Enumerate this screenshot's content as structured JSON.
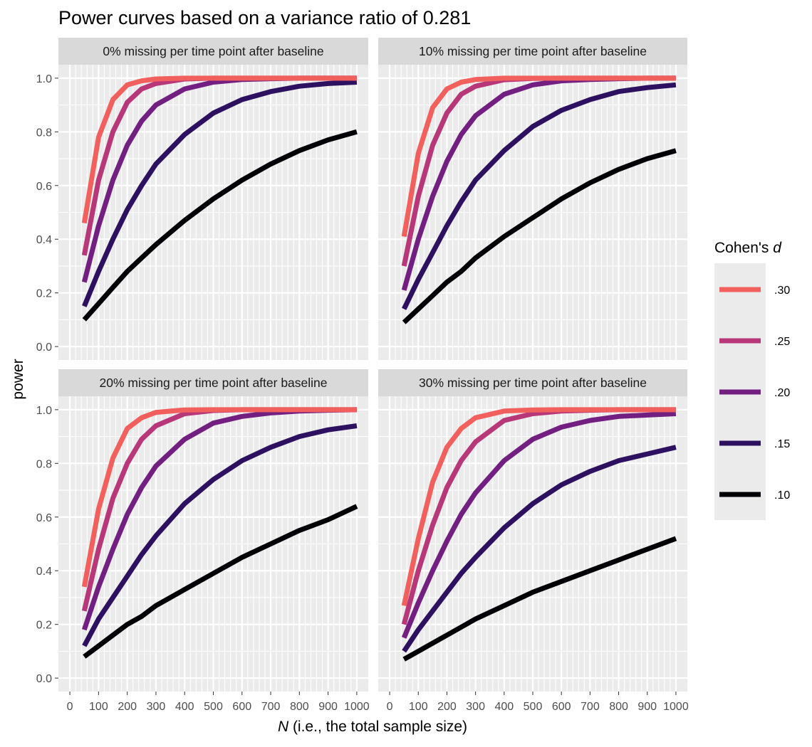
{
  "chart_data": {
    "type": "line",
    "title": "Power curves based on a variance ratio of 0.281",
    "xlabel_italic": "N",
    "xlabel_rest": " (i.e., the total sample size)",
    "ylabel": "power",
    "x_ticks": [
      0,
      100,
      200,
      300,
      400,
      500,
      600,
      700,
      800,
      900,
      1000
    ],
    "y_ticks": [
      0.0,
      0.2,
      0.4,
      0.6,
      0.8,
      1.0
    ],
    "y_tick_labels": [
      "0.0",
      "0.2",
      "0.4",
      "0.6",
      "0.8",
      "1.0"
    ],
    "xlim": [
      -40,
      1040
    ],
    "ylim": [
      -0.05,
      1.05
    ],
    "x_minor_step": 20,
    "grid": true,
    "legend": {
      "title_prefix": "Cohen's ",
      "title_italic": "d",
      "placement": "right",
      "entries": [
        {
          "label": ".30",
          "color": "#F1605D"
        },
        {
          "label": ".25",
          "color": "#B73779"
        },
        {
          "label": ".20",
          "color": "#721F81"
        },
        {
          "label": ".15",
          "color": "#2D1160"
        },
        {
          "label": ".10",
          "color": "#000004"
        }
      ]
    },
    "panels": [
      {
        "label": "0% missing per time point after baseline",
        "x": [
          50,
          100,
          150,
          200,
          250,
          300,
          400,
          500,
          600,
          700,
          800,
          900,
          1000
        ],
        "series": [
          {
            "name": ".30",
            "color": "#F1605D",
            "values": [
              0.46,
              0.78,
              0.92,
              0.975,
              0.99,
              0.997,
              1.0,
              1.0,
              1.0,
              1.0,
              1.0,
              1.0,
              1.0
            ]
          },
          {
            "name": ".25",
            "color": "#B73779",
            "values": [
              0.34,
              0.62,
              0.8,
              0.91,
              0.96,
              0.98,
              0.997,
              1.0,
              1.0,
              1.0,
              1.0,
              1.0,
              1.0
            ]
          },
          {
            "name": ".20",
            "color": "#721F81",
            "values": [
              0.24,
              0.45,
              0.62,
              0.75,
              0.84,
              0.9,
              0.96,
              0.985,
              0.995,
              0.998,
              1.0,
              1.0,
              1.0
            ]
          },
          {
            "name": ".15",
            "color": "#2D1160",
            "values": [
              0.15,
              0.28,
              0.4,
              0.51,
              0.6,
              0.68,
              0.79,
              0.87,
              0.92,
              0.95,
              0.97,
              0.98,
              0.985
            ]
          },
          {
            "name": ".10",
            "color": "#000004",
            "values": [
              0.1,
              0.16,
              0.22,
              0.28,
              0.33,
              0.38,
              0.47,
              0.55,
              0.62,
              0.68,
              0.73,
              0.77,
              0.8
            ]
          }
        ]
      },
      {
        "label": "10% missing per time point after baseline",
        "x": [
          50,
          100,
          150,
          200,
          250,
          300,
          400,
          500,
          600,
          700,
          800,
          900,
          1000
        ],
        "series": [
          {
            "name": ".30",
            "color": "#F1605D",
            "values": [
              0.41,
              0.72,
              0.89,
              0.96,
              0.985,
              0.995,
              1.0,
              1.0,
              1.0,
              1.0,
              1.0,
              1.0,
              1.0
            ]
          },
          {
            "name": ".25",
            "color": "#B73779",
            "values": [
              0.3,
              0.56,
              0.75,
              0.87,
              0.94,
              0.97,
              0.994,
              0.999,
              1.0,
              1.0,
              1.0,
              1.0,
              1.0
            ]
          },
          {
            "name": ".20",
            "color": "#721F81",
            "values": [
              0.21,
              0.4,
              0.56,
              0.69,
              0.79,
              0.86,
              0.94,
              0.975,
              0.99,
              0.995,
              0.998,
              1.0,
              1.0
            ]
          },
          {
            "name": ".15",
            "color": "#2D1160",
            "values": [
              0.14,
              0.25,
              0.35,
              0.45,
              0.54,
              0.62,
              0.73,
              0.82,
              0.88,
              0.92,
              0.95,
              0.965,
              0.975
            ]
          },
          {
            "name": ".10",
            "color": "#000004",
            "values": [
              0.09,
              0.14,
              0.19,
              0.24,
              0.28,
              0.33,
              0.41,
              0.48,
              0.55,
              0.61,
              0.66,
              0.7,
              0.73
            ]
          }
        ]
      },
      {
        "label": "20% missing per time point after baseline",
        "x": [
          50,
          100,
          150,
          200,
          250,
          300,
          400,
          500,
          600,
          700,
          800,
          900,
          1000
        ],
        "series": [
          {
            "name": ".30",
            "color": "#F1605D",
            "values": [
              0.34,
              0.63,
              0.82,
              0.93,
              0.97,
              0.99,
              0.999,
              1.0,
              1.0,
              1.0,
              1.0,
              1.0,
              1.0
            ]
          },
          {
            "name": ".25",
            "color": "#B73779",
            "values": [
              0.25,
              0.48,
              0.67,
              0.8,
              0.89,
              0.94,
              0.985,
              0.997,
              1.0,
              1.0,
              1.0,
              1.0,
              1.0
            ]
          },
          {
            "name": ".20",
            "color": "#721F81",
            "values": [
              0.18,
              0.34,
              0.48,
              0.61,
              0.71,
              0.79,
              0.89,
              0.95,
              0.975,
              0.988,
              0.995,
              0.998,
              1.0
            ]
          },
          {
            "name": ".15",
            "color": "#2D1160",
            "values": [
              0.12,
              0.22,
              0.3,
              0.38,
              0.46,
              0.53,
              0.65,
              0.74,
              0.81,
              0.86,
              0.9,
              0.925,
              0.94
            ]
          },
          {
            "name": ".10",
            "color": "#000004",
            "values": [
              0.08,
              0.12,
              0.16,
              0.2,
              0.23,
              0.27,
              0.33,
              0.39,
              0.45,
              0.5,
              0.55,
              0.59,
              0.64
            ]
          }
        ]
      },
      {
        "label": "30% missing per time point after baseline",
        "x": [
          50,
          100,
          150,
          200,
          250,
          300,
          400,
          500,
          600,
          700,
          800,
          900,
          1000
        ],
        "series": [
          {
            "name": ".30",
            "color": "#F1605D",
            "values": [
              0.27,
              0.52,
              0.73,
              0.86,
              0.93,
              0.97,
              0.995,
              0.999,
              1.0,
              1.0,
              1.0,
              1.0,
              1.0
            ]
          },
          {
            "name": ".25",
            "color": "#B73779",
            "values": [
              0.2,
              0.4,
              0.57,
              0.71,
              0.81,
              0.88,
              0.96,
              0.985,
              0.995,
              0.998,
              1.0,
              1.0,
              1.0
            ]
          },
          {
            "name": ".20",
            "color": "#721F81",
            "values": [
              0.15,
              0.28,
              0.4,
              0.51,
              0.61,
              0.69,
              0.81,
              0.89,
              0.935,
              0.96,
              0.975,
              0.98,
              0.985
            ]
          },
          {
            "name": ".15",
            "color": "#2D1160",
            "values": [
              0.1,
              0.18,
              0.25,
              0.32,
              0.39,
              0.45,
              0.56,
              0.65,
              0.72,
              0.77,
              0.81,
              0.835,
              0.86
            ]
          },
          {
            "name": ".10",
            "color": "#000004",
            "values": [
              0.07,
              0.1,
              0.13,
              0.16,
              0.19,
              0.22,
              0.27,
              0.32,
              0.36,
              0.4,
              0.44,
              0.48,
              0.52
            ]
          }
        ]
      }
    ]
  }
}
